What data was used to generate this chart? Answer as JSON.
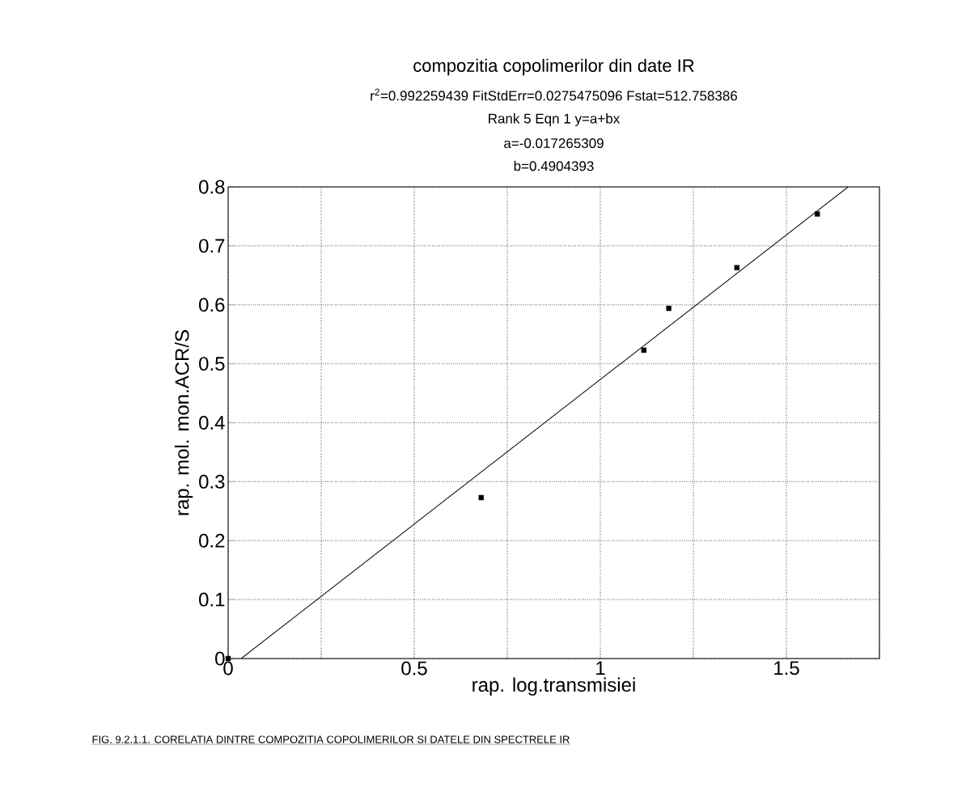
{
  "chart_data": {
    "type": "scatter",
    "title": "compozitia copolimerilor din date IR",
    "subtitle": "r$^{2}$=0.992259439  FitStdErr=0.0275475096  Fstat=512.758386",
    "annotations": [
      "Rank 5  Eqn 1  y=a+bx",
      "a=-0.017265309",
      "b=0.4904393",
      "FIG. 9.2.1.1. CORELATIA DINTRE COMPOZITIA COPOLIMERILOR SI DATELE DIN SPECTRELE IR"
    ],
    "xlabel": "rap. log.transmisiei",
    "ylabel": "rap. mol. mon.ACR/S",
    "xlim": [
      0,
      1.75
    ],
    "ylim": [
      0,
      0.8
    ],
    "xticks": [
      0,
      {
        "value": 0.25,
        "label": null
      },
      0.5,
      {
        "value": 0.75,
        "label": null
      },
      1,
      {
        "value": 1.25,
        "label": null
      },
      1.5,
      {
        "value": 1.75,
        "label": null
      }
    ],
    "yticks": [
      0,
      0.1,
      0.2,
      0.3,
      0.4,
      0.5,
      0.6,
      0.7,
      0.8
    ],
    "grid": true,
    "series": [
      {
        "color": "#000000",
        "marker": "square",
        "x": [
          0,
          0.68,
          1.117,
          1.184,
          1.367,
          1.583
        ],
        "values": [
          0,
          0.273,
          0.523,
          0.594,
          0.663,
          0.754
        ]
      },
      {
        "type": "line",
        "color": "#000000",
        "marker": "none",
        "line_style": "solid",
        "x": [
          0.035,
          1.666
        ],
        "values": [
          0,
          0.8
        ]
      }
    ]
  }
}
